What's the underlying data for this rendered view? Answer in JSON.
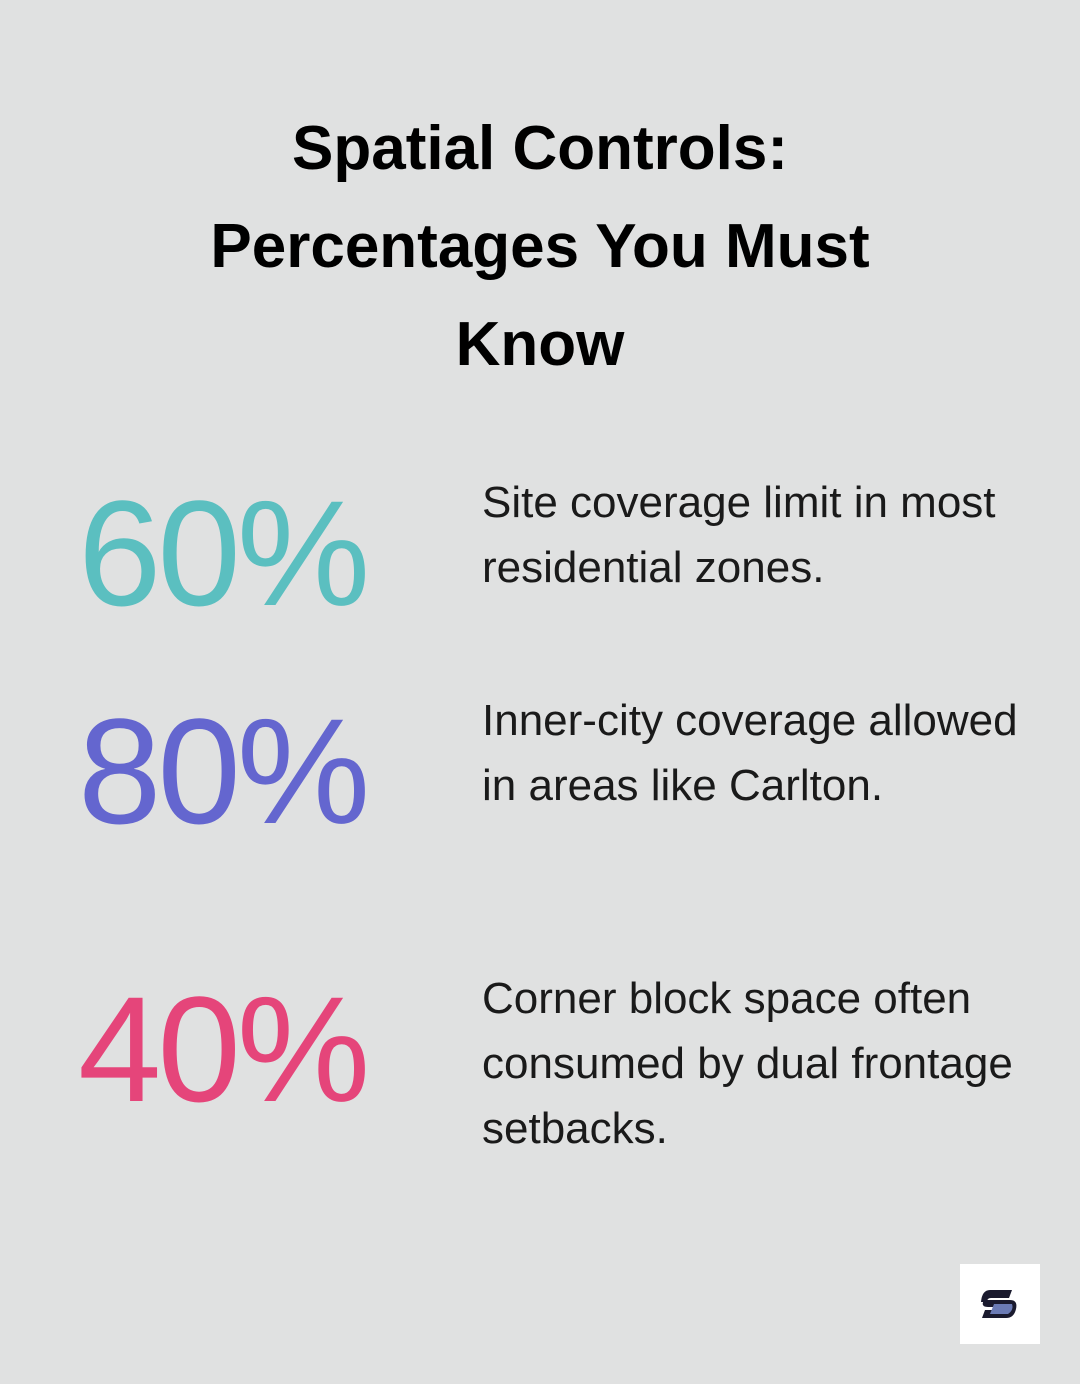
{
  "title": "Spatial Controls: Percentages You Must Know",
  "stats": [
    {
      "value": "60%",
      "color": "#5bbfc0",
      "text": "Site coverage limit in most residential zones."
    },
    {
      "value": "80%",
      "color": "#6466cf",
      "text": "Inner-city coverage allowed in areas like Carlton."
    },
    {
      "value": "40%",
      "color": "#e5457a",
      "text": "Corner block space often consumed by dual frontage setbacks."
    }
  ]
}
